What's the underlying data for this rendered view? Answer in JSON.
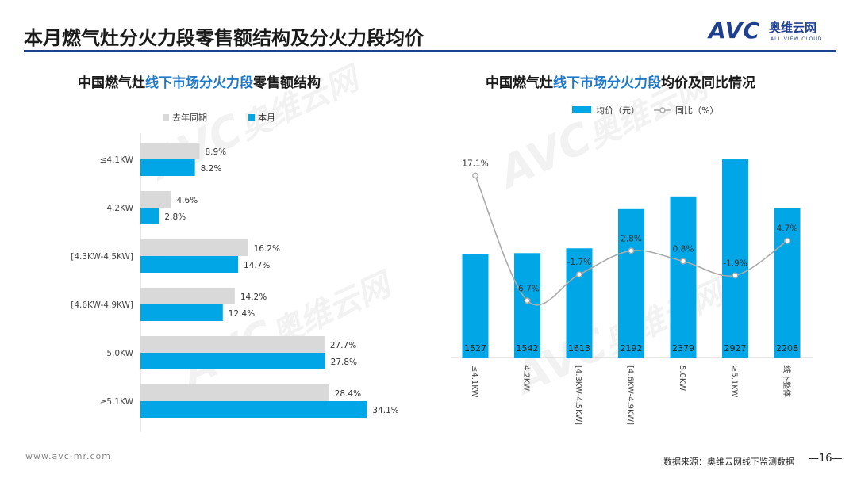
{
  "page": {
    "title": "本月燃气灶分火力段零售额结构及分火力段均价",
    "logo_mark": "AVC",
    "logo_cn": "奥维云网",
    "logo_en": "ALL VIEW CLOUD",
    "website": "www.avc-mr.com",
    "source": "数据来源：奥维云网线下监测数据",
    "page_number": "—16—",
    "watermark_mark": "AVC",
    "watermark_cn": "奥维云网",
    "watermark_en": "ALL VIEW CLOUD"
  },
  "left_chart": {
    "title_pre": "中国燃气灶",
    "title_hl": "线下市场分火力段",
    "title_post": "零售额结构"
  },
  "right_chart": {
    "title_pre": "中国燃气灶",
    "title_hl": "线下市场分火力段",
    "title_post": "均价及同比情况"
  },
  "colors": {
    "blue": "#00a6e6",
    "gray": "#d9d9d9",
    "line": "#aaaaaa",
    "accent": "#1f78c8"
  },
  "chart_data": [
    {
      "type": "bar",
      "orientation": "horizontal",
      "categories": [
        "≤4.1KW",
        "4.2KW",
        "[4.3KW-4.5KW]",
        "[4.6KW-4.9KW]",
        "5.0KW",
        "≥5.1KW"
      ],
      "series": [
        {
          "name": "去年同期",
          "values": [
            8.9,
            4.6,
            16.2,
            14.2,
            27.7,
            28.4
          ],
          "labels": [
            "8.9%",
            "4.6%",
            "16.2%",
            "14.2%",
            "27.7%",
            "28.4%"
          ]
        },
        {
          "name": "本月",
          "values": [
            8.2,
            2.8,
            14.7,
            12.4,
            27.8,
            34.1
          ],
          "labels": [
            "8.2%",
            "2.8%",
            "14.7%",
            "12.4%",
            "27.8%",
            "34.1%"
          ]
        }
      ],
      "legend": "top-left"
    },
    {
      "type": "bar",
      "categories": [
        "≤4.1KW",
        "4.2KW",
        "[4.3KW-4.5KW]",
        "[4.6KW-4.9KW]",
        "5.0KW",
        "≥5.1KW",
        "线下整体"
      ],
      "series": [
        {
          "name": "均价（元）",
          "type": "bar",
          "values": [
            1527,
            1542,
            1613,
            2192,
            2379,
            2927,
            2208
          ],
          "labels": [
            "1527",
            "1542",
            "1613",
            "2192",
            "2379",
            "2927",
            "2208"
          ]
        },
        {
          "name": "同比（%）",
          "type": "line",
          "values": [
            17.1,
            -6.7,
            -1.7,
            2.8,
            0.8,
            -1.9,
            4.7
          ],
          "labels": [
            "17.1%",
            "-6.7%",
            "-1.7%",
            "2.8%",
            "0.8%",
            "-1.9%",
            "4.7%"
          ]
        }
      ],
      "legend": "top"
    }
  ]
}
